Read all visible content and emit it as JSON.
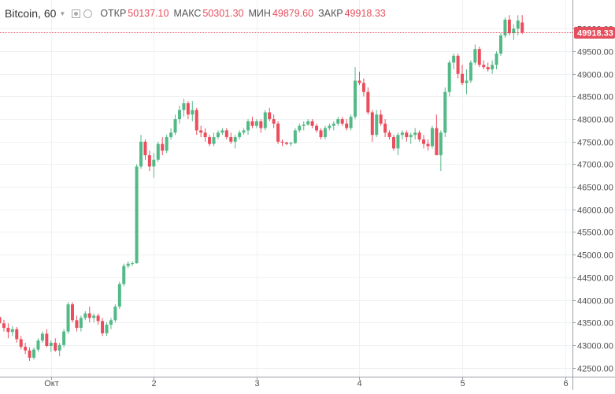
{
  "legend": {
    "symbol": "Bitcoin",
    "interval": "60",
    "open_label": "ОТКР",
    "open": "50137.10",
    "high_label": "МАКС",
    "high": "50301.30",
    "low_label": "МИН",
    "low": "49879.60",
    "close_label": "ЗАКР",
    "close": "49918.33"
  },
  "colors": {
    "up": "#53b987",
    "down": "#eb4d5c",
    "grid": "#eef1f3",
    "axis_text": "#4f4f4f",
    "last_price": "#e54e5d"
  },
  "icons": [
    "chevron-down-icon",
    "eye-icon",
    "gear-icon"
  ],
  "chart_data": {
    "type": "candlestick",
    "y_axis_position": "right",
    "ylim": [
      42300,
      50600
    ],
    "y_ticks": [
      "42500.00",
      "43000.00",
      "43500.00",
      "44000.00",
      "44500.00",
      "45000.00",
      "45500.00",
      "46000.00",
      "46500.00",
      "47000.00",
      "47500.00",
      "48000.00",
      "48500.00",
      "49000.00",
      "49500.00",
      "50000.00"
    ],
    "x_ticks": [
      {
        "label": "Окт",
        "index": 12
      },
      {
        "label": "2",
        "index": 36
      },
      {
        "label": "3",
        "index": 60
      },
      {
        "label": "4",
        "index": 84
      },
      {
        "label": "5",
        "index": 108
      },
      {
        "label": "6",
        "index": 132
      }
    ],
    "last_price": "49918.33",
    "candles": [
      [
        43620,
        43700,
        43380,
        43480
      ],
      [
        43480,
        43560,
        43300,
        43380
      ],
      [
        43380,
        43480,
        43150,
        43290
      ],
      [
        43290,
        43420,
        43200,
        43350
      ],
      [
        43350,
        43400,
        43050,
        43130
      ],
      [
        43130,
        43200,
        42900,
        42960
      ],
      [
        42960,
        43050,
        42800,
        42880
      ],
      [
        42880,
        42950,
        42650,
        42720
      ],
      [
        42720,
        42950,
        42680,
        42900
      ],
      [
        42900,
        43150,
        42850,
        43100
      ],
      [
        43100,
        43300,
        43050,
        43250
      ],
      [
        43250,
        43350,
        42950,
        42980
      ],
      [
        42980,
        43100,
        42850,
        43050
      ],
      [
        43050,
        43150,
        42850,
        42880
      ],
      [
        42880,
        43050,
        42750,
        43000
      ],
      [
        43000,
        43350,
        42950,
        43300
      ],
      [
        43300,
        43950,
        43250,
        43900
      ],
      [
        43900,
        43950,
        43500,
        43550
      ],
      [
        43550,
        43650,
        43300,
        43380
      ],
      [
        43380,
        43650,
        43300,
        43600
      ],
      [
        43600,
        43750,
        43550,
        43700
      ],
      [
        43700,
        43850,
        43500,
        43600
      ],
      [
        43600,
        43700,
        43500,
        43650
      ],
      [
        43650,
        43700,
        43450,
        43530
      ],
      [
        43530,
        43600,
        43200,
        43260
      ],
      [
        43260,
        43500,
        43200,
        43450
      ],
      [
        43450,
        43600,
        43350,
        43550
      ],
      [
        43550,
        43900,
        43500,
        43850
      ],
      [
        43850,
        44400,
        43800,
        44350
      ],
      [
        44350,
        44800,
        44300,
        44750
      ],
      [
        44750,
        44850,
        44700,
        44800
      ],
      [
        44800,
        44850,
        44750,
        44810
      ],
      [
        44810,
        47000,
        44800,
        46950
      ],
      [
        46950,
        47650,
        46900,
        47500
      ],
      [
        47500,
        47550,
        47100,
        47200
      ],
      [
        47200,
        47300,
        46850,
        46950
      ],
      [
        46950,
        47250,
        46700,
        47100
      ],
      [
        47100,
        47500,
        47050,
        47450
      ],
      [
        47450,
        47600,
        47200,
        47300
      ],
      [
        47300,
        47650,
        47250,
        47600
      ],
      [
        47600,
        47800,
        47550,
        47700
      ],
      [
        47700,
        48100,
        47650,
        48000
      ],
      [
        48000,
        48300,
        47900,
        48200
      ],
      [
        48200,
        48450,
        48050,
        48350
      ],
      [
        48350,
        48400,
        48000,
        48100
      ],
      [
        48100,
        48400,
        47950,
        48200
      ],
      [
        48200,
        48250,
        47650,
        47750
      ],
      [
        47750,
        47850,
        47600,
        47700
      ],
      [
        47700,
        47800,
        47500,
        47600
      ],
      [
        47600,
        47650,
        47400,
        47450
      ],
      [
        47450,
        47700,
        47400,
        47600
      ],
      [
        47600,
        47750,
        47550,
        47700
      ],
      [
        47700,
        47800,
        47650,
        47750
      ],
      [
        47750,
        47800,
        47550,
        47600
      ],
      [
        47600,
        47700,
        47450,
        47500
      ],
      [
        47500,
        47650,
        47350,
        47600
      ],
      [
        47600,
        47750,
        47550,
        47700
      ],
      [
        47700,
        47800,
        47650,
        47750
      ],
      [
        47750,
        48000,
        47650,
        47950
      ],
      [
        47950,
        48050,
        47800,
        47850
      ],
      [
        47850,
        48000,
        47800,
        47950
      ],
      [
        47950,
        48000,
        47700,
        47800
      ],
      [
        47800,
        48200,
        47750,
        48150
      ],
      [
        48150,
        48250,
        47950,
        48000
      ],
      [
        48000,
        48100,
        47800,
        47900
      ],
      [
        47900,
        47950,
        47450,
        47500
      ],
      [
        47500,
        47550,
        47400,
        47480
      ],
      [
        47480,
        47500,
        47420,
        47450
      ],
      [
        47450,
        47500,
        47400,
        47470
      ],
      [
        47470,
        47800,
        47450,
        47750
      ],
      [
        47750,
        47900,
        47700,
        47850
      ],
      [
        47850,
        47950,
        47750,
        47880
      ],
      [
        47880,
        48000,
        47850,
        47950
      ],
      [
        47950,
        48000,
        47800,
        47850
      ],
      [
        47850,
        47900,
        47700,
        47750
      ],
      [
        47750,
        47800,
        47550,
        47600
      ],
      [
        47600,
        47850,
        47550,
        47800
      ],
      [
        47800,
        47900,
        47750,
        47850
      ],
      [
        47850,
        47950,
        47750,
        47900
      ],
      [
        47900,
        48050,
        47850,
        48000
      ],
      [
        48000,
        48050,
        47850,
        47900
      ],
      [
        47900,
        48000,
        47750,
        47800
      ],
      [
        47800,
        48100,
        47750,
        48050
      ],
      [
        48050,
        49150,
        48000,
        48850
      ],
      [
        48850,
        49050,
        48750,
        48800
      ],
      [
        48800,
        48900,
        48500,
        48600
      ],
      [
        48600,
        48700,
        48100,
        48150
      ],
      [
        48150,
        48200,
        47500,
        47650
      ],
      [
        47650,
        48200,
        47600,
        48100
      ],
      [
        48100,
        48200,
        47850,
        47900
      ],
      [
        47900,
        48000,
        47600,
        47700
      ],
      [
        47700,
        47750,
        47550,
        47600
      ],
      [
        47600,
        47650,
        47300,
        47350
      ],
      [
        47350,
        47700,
        47200,
        47650
      ],
      [
        47650,
        47750,
        47550,
        47700
      ],
      [
        47700,
        47750,
        47500,
        47600
      ],
      [
        47600,
        47700,
        47450,
        47650
      ],
      [
        47650,
        47800,
        47550,
        47700
      ],
      [
        47700,
        47750,
        47500,
        47550
      ],
      [
        47550,
        47650,
        47350,
        47450
      ],
      [
        47450,
        47550,
        47300,
        47400
      ],
      [
        47400,
        47850,
        47350,
        47800
      ],
      [
        47800,
        48100,
        47200,
        47200
      ],
      [
        47200,
        47750,
        46850,
        47700
      ],
      [
        47700,
        48700,
        47600,
        48600
      ],
      [
        48600,
        49300,
        48500,
        49250
      ],
      [
        49250,
        49450,
        49100,
        49400
      ],
      [
        49400,
        49450,
        48900,
        49000
      ],
      [
        49000,
        49200,
        48750,
        48800
      ],
      [
        48800,
        49100,
        48550,
        48850
      ],
      [
        48850,
        49300,
        48800,
        49250
      ],
      [
        49250,
        49650,
        49200,
        49550
      ],
      [
        49550,
        49600,
        49150,
        49200
      ],
      [
        49200,
        49300,
        49100,
        49150
      ],
      [
        49150,
        49250,
        49050,
        49100
      ],
      [
        49100,
        49300,
        49000,
        49200
      ],
      [
        49200,
        49500,
        49100,
        49450
      ],
      [
        49450,
        49900,
        49400,
        49850
      ],
      [
        49850,
        50250,
        49800,
        50200
      ],
      [
        50200,
        50300,
        49850,
        49900
      ],
      [
        49900,
        50100,
        49750,
        50000
      ],
      [
        50000,
        50300,
        49850,
        50180
      ],
      [
        50137.1,
        50301.3,
        49879.6,
        49918.33
      ]
    ]
  }
}
